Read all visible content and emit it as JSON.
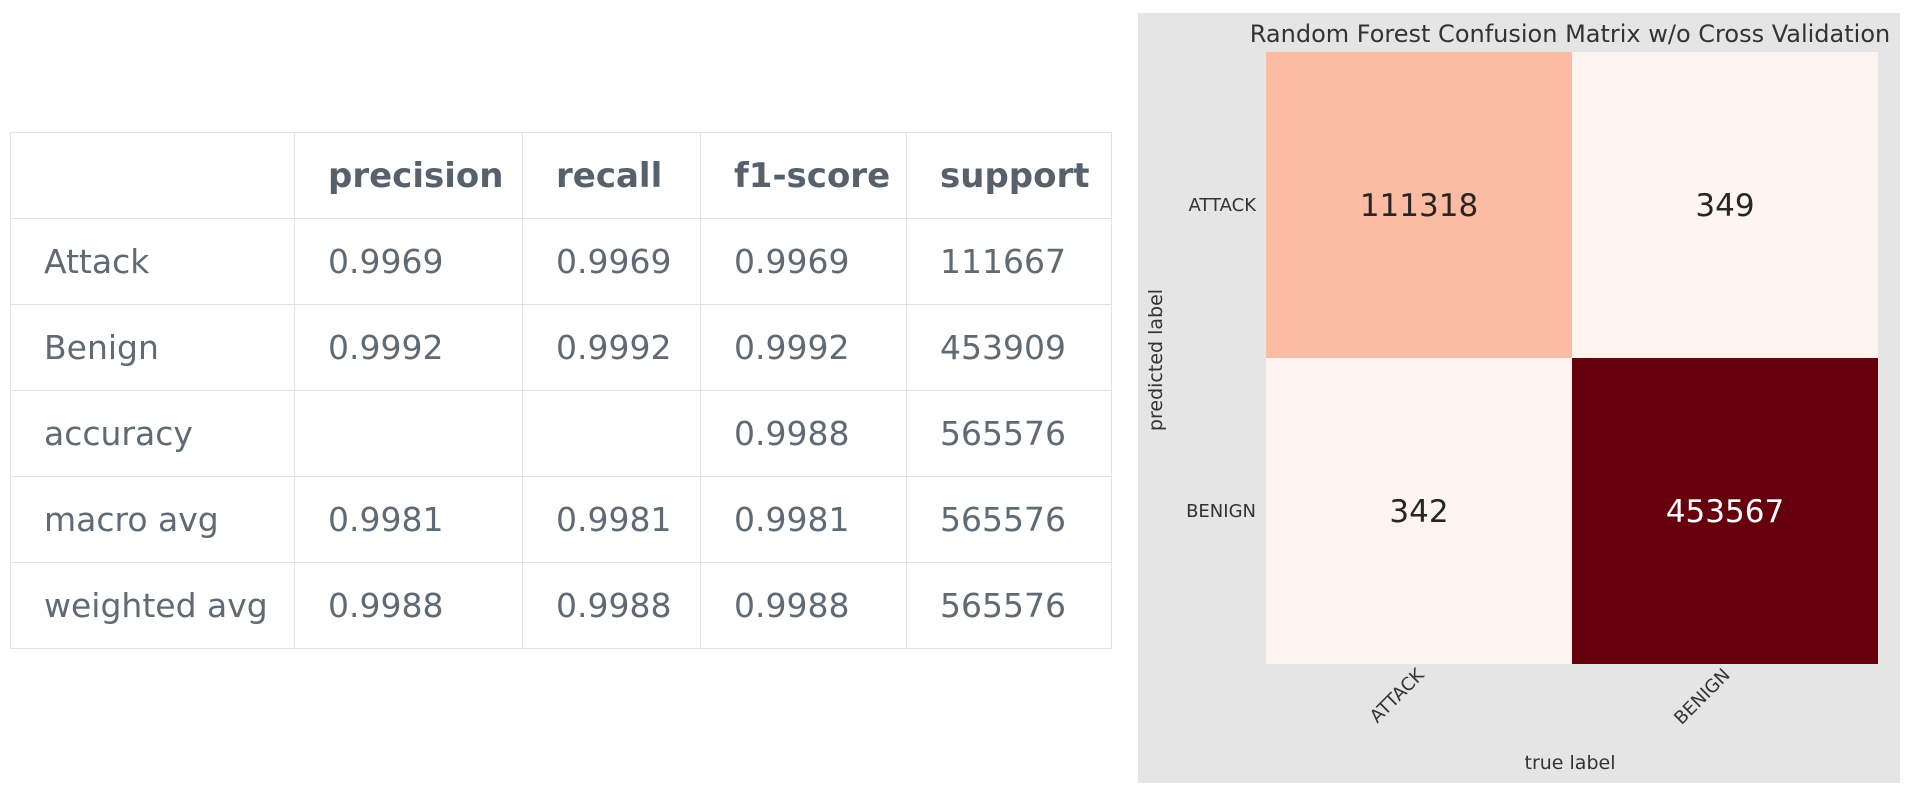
{
  "report": {
    "columns": [
      "",
      "precision",
      "recall",
      "f1-score",
      "support"
    ],
    "rows": [
      {
        "label": "Attack",
        "precision": "0.9969",
        "recall": "0.9969",
        "f1": "0.9969",
        "support": "111667"
      },
      {
        "label": "Benign",
        "precision": "0.9992",
        "recall": "0.9992",
        "f1": "0.9992",
        "support": "453909"
      },
      {
        "label": "accuracy",
        "precision": "",
        "recall": "",
        "f1": "0.9988",
        "support": "565576"
      },
      {
        "label": "macro avg",
        "precision": "0.9981",
        "recall": "0.9981",
        "f1": "0.9981",
        "support": "565576"
      },
      {
        "label": "weighted avg",
        "precision": "0.9988",
        "recall": "0.9988",
        "f1": "0.9988",
        "support": "565576"
      }
    ]
  },
  "chart_data": {
    "type": "heatmap",
    "title": "Random Forest Confusion Matrix w/o Cross Validation",
    "xlabel": "true label",
    "ylabel": "predicted label",
    "x_categories": [
      "ATTACK",
      "BENIGN"
    ],
    "y_categories": [
      "ATTACK",
      "BENIGN"
    ],
    "values": [
      [
        111318,
        349
      ],
      [
        342,
        453567
      ]
    ],
    "colormap": "Reds",
    "grid": false,
    "colors": {
      "background": "#e5e5e5",
      "low": "#fff5f0",
      "mid": "#fcbba1",
      "high": "#67000d",
      "text_dark": "#262626",
      "text_light": "#ffffff"
    }
  }
}
